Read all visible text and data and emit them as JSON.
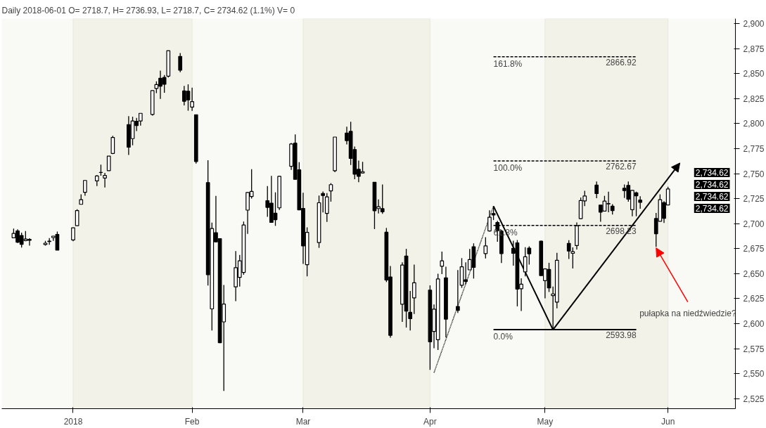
{
  "chart_data": {
    "type": "candlestick",
    "title": "Daily 2018-06-01 O= 2718.7, H= 2736.93, L= 2718.7, C= 2734.62 (1.1%) V= 0",
    "color": "#000000",
    "x": [
      "2017-12-18",
      "2017-12-19",
      "2017-12-20",
      "2017-12-21",
      "2017-12-22",
      "2017-12-26",
      "2017-12-27",
      "2017-12-28",
      "2017-12-29",
      "2018-01-02",
      "2018-01-03",
      "2018-01-04",
      "2018-01-05",
      "2018-01-08",
      "2018-01-09",
      "2018-01-10",
      "2018-01-11",
      "2018-01-12",
      "2018-01-16",
      "2018-01-17",
      "2018-01-18",
      "2018-01-19",
      "2018-01-22",
      "2018-01-23",
      "2018-01-24",
      "2018-01-25",
      "2018-01-26",
      "2018-01-29",
      "2018-01-30",
      "2018-01-31",
      "2018-02-01",
      "2018-02-02",
      "2018-02-05",
      "2018-02-06",
      "2018-02-07",
      "2018-02-08",
      "2018-02-09",
      "2018-02-12",
      "2018-02-13",
      "2018-02-14",
      "2018-02-15",
      "2018-02-16",
      "2018-02-20",
      "2018-02-21",
      "2018-02-22",
      "2018-02-23",
      "2018-02-26",
      "2018-02-27",
      "2018-02-28",
      "2018-03-01",
      "2018-03-02",
      "2018-03-05",
      "2018-03-06",
      "2018-03-07",
      "2018-03-08",
      "2018-03-09",
      "2018-03-12",
      "2018-03-13",
      "2018-03-14",
      "2018-03-15",
      "2018-03-16",
      "2018-03-19",
      "2018-03-20",
      "2018-03-21",
      "2018-03-22",
      "2018-03-23",
      "2018-03-26",
      "2018-03-27",
      "2018-03-28",
      "2018-03-29",
      "2018-04-02",
      "2018-04-03",
      "2018-04-04",
      "2018-04-05",
      "2018-04-06",
      "2018-04-09",
      "2018-04-10",
      "2018-04-11",
      "2018-04-12",
      "2018-04-13",
      "2018-04-16",
      "2018-04-17",
      "2018-04-18",
      "2018-04-19",
      "2018-04-20",
      "2018-04-23",
      "2018-04-24",
      "2018-04-25",
      "2018-04-26",
      "2018-04-27",
      "2018-04-30",
      "2018-05-01",
      "2018-05-02",
      "2018-05-03",
      "2018-05-04",
      "2018-05-07",
      "2018-05-08",
      "2018-05-09",
      "2018-05-10",
      "2018-05-11",
      "2018-05-14",
      "2018-05-15",
      "2018-05-16",
      "2018-05-17",
      "2018-05-18",
      "2018-05-21",
      "2018-05-22",
      "2018-05-23",
      "2018-05-24",
      "2018-05-25",
      "2018-05-29",
      "2018-05-30",
      "2018-05-31",
      "2018-06-01"
    ],
    "ohlc": [
      [
        2685.9,
        2695.0,
        2685.9,
        2690.2
      ],
      [
        2692.7,
        2694.4,
        2680.7,
        2681.5
      ],
      [
        2688.2,
        2691.0,
        2676.1,
        2679.3
      ],
      [
        2683.0,
        2692.6,
        2682.4,
        2684.6
      ],
      [
        2684.2,
        2685.4,
        2678.1,
        2683.3
      ],
      [
        2679.1,
        2682.7,
        2678.0,
        2680.5
      ],
      [
        2682.1,
        2685.6,
        2678.9,
        2682.6
      ],
      [
        2686.1,
        2687.7,
        2682.7,
        2687.5
      ],
      [
        2689.2,
        2692.1,
        2673.6,
        2673.6
      ],
      [
        2683.7,
        2695.9,
        2682.4,
        2695.8
      ],
      [
        2697.9,
        2714.4,
        2697.8,
        2713.1
      ],
      [
        2719.3,
        2729.3,
        2719.1,
        2724.0
      ],
      [
        2731.3,
        2743.5,
        2727.9,
        2743.2
      ],
      [
        2742.7,
        2748.5,
        2737.6,
        2747.7
      ],
      [
        2751.2,
        2759.1,
        2747.9,
        2751.3
      ],
      [
        2745.6,
        2750.8,
        2736.1,
        2748.2
      ],
      [
        2753.0,
        2767.6,
        2752.8,
        2767.6
      ],
      [
        2770.2,
        2787.9,
        2769.6,
        2786.2
      ],
      [
        2799.0,
        2807.5,
        2768.6,
        2776.4
      ],
      [
        2785.0,
        2807.0,
        2778.4,
        2802.6
      ],
      [
        2802.4,
        2805.8,
        2792.6,
        2798.0
      ],
      [
        2802.6,
        2810.3,
        2798.1,
        2810.3
      ],
      [
        2809.2,
        2833.0,
        2808.1,
        2833.0
      ],
      [
        2835.1,
        2842.2,
        2830.6,
        2839.1
      ],
      [
        2845.4,
        2853.0,
        2824.8,
        2837.5
      ],
      [
        2846.2,
        2848.6,
        2830.9,
        2839.3
      ],
      [
        2847.5,
        2872.9,
        2846.2,
        2872.9
      ],
      [
        2867.2,
        2870.6,
        2851.5,
        2853.5
      ],
      [
        2832.7,
        2837.8,
        2818.3,
        2822.4
      ],
      [
        2832.4,
        2839.3,
        2813.0,
        2823.8
      ],
      [
        2816.5,
        2836.0,
        2812.7,
        2822.0
      ],
      [
        2808.9,
        2808.9,
        2760.0,
        2762.1
      ],
      [
        2741.1,
        2763.4,
        2638.2,
        2648.9
      ],
      [
        2614.8,
        2701.0,
        2593.1,
        2695.1
      ],
      [
        2691.0,
        2727.7,
        2681.3,
        2681.7
      ],
      [
        2685.0,
        2685.3,
        2580.6,
        2581.0
      ],
      [
        2601.8,
        2638.7,
        2532.7,
        2619.6
      ],
      [
        2636.8,
        2672.6,
        2622.5,
        2656.0
      ],
      [
        2646.3,
        2668.8,
        2637.1,
        2662.9
      ],
      [
        2651.2,
        2702.1,
        2648.9,
        2698.6
      ],
      [
        2713.5,
        2731.5,
        2689.8,
        2731.2
      ],
      [
        2727.1,
        2754.4,
        2725.1,
        2732.2
      ],
      [
        2723.0,
        2737.6,
        2706.8,
        2716.3
      ],
      [
        2720.5,
        2747.8,
        2701.3,
        2701.3
      ],
      [
        2710.4,
        2731.3,
        2697.8,
        2704.0
      ],
      [
        2715.8,
        2747.8,
        2713.7,
        2747.3
      ],
      [
        2757.4,
        2780.6,
        2753.8,
        2779.6
      ],
      [
        2780.5,
        2789.2,
        2744.2,
        2744.3
      ],
      [
        2753.8,
        2761.5,
        2713.5,
        2713.8
      ],
      [
        2715.2,
        2730.9,
        2659.7,
        2677.7
      ],
      [
        2658.9,
        2696.3,
        2647.3,
        2691.3
      ],
      [
        2681.1,
        2728.1,
        2675.8,
        2720.9
      ],
      [
        2730.2,
        2732.1,
        2711.3,
        2728.1
      ],
      [
        2710.2,
        2730.6,
        2701.7,
        2726.8
      ],
      [
        2732.8,
        2740.5,
        2722.0,
        2739.0
      ],
      [
        2752.9,
        2786.6,
        2751.5,
        2786.6
      ],
      [
        2790.5,
        2797.0,
        2779.3,
        2783.0
      ],
      [
        2792.3,
        2801.9,
        2758.7,
        2765.3
      ],
      [
        2774.1,
        2777.1,
        2744.4,
        2749.5
      ],
      [
        2754.3,
        2763.0,
        2741.5,
        2747.3
      ],
      [
        2750.6,
        2761.9,
        2750.0,
        2752.0
      ],
      [
        2741.4,
        2741.4,
        2694.6,
        2712.9
      ],
      [
        2715.1,
        2724.2,
        2710.1,
        2716.9
      ],
      [
        2715.0,
        2739.1,
        2709.8,
        2711.9
      ],
      [
        2691.4,
        2695.7,
        2641.6,
        2643.7
      ],
      [
        2646.7,
        2657.7,
        2585.9,
        2588.3
      ],
      [
        2619.4,
        2661.4,
        2601.8,
        2658.6
      ],
      [
        2667.6,
        2674.8,
        2596.1,
        2612.6
      ],
      [
        2611.3,
        2632.7,
        2593.1,
        2605.0
      ],
      [
        2625.7,
        2659.1,
        2609.7,
        2640.9
      ],
      [
        2633.5,
        2638.3,
        2553.8,
        2581.9
      ],
      [
        2592.2,
        2619.1,
        2575.5,
        2614.5
      ],
      [
        2584.0,
        2649.9,
        2573.6,
        2644.7
      ],
      [
        2657.4,
        2672.1,
        2649.6,
        2662.8
      ],
      [
        2645.8,
        2656.9,
        2586.3,
        2604.5
      ],
      [
        2617.2,
        2653.6,
        2610.8,
        2613.2
      ],
      [
        2638.4,
        2665.5,
        2635.8,
        2656.9
      ],
      [
        2643.9,
        2661.4,
        2639.3,
        2642.2
      ],
      [
        2653.8,
        2674.7,
        2653.8,
        2664.0
      ],
      [
        2676.9,
        2680.3,
        2645.1,
        2656.3
      ],
      [
        2670.1,
        2686.5,
        2665.2,
        2677.8
      ],
      [
        2692.7,
        2713.3,
        2692.1,
        2706.4
      ],
      [
        2710.1,
        2717.5,
        2703.6,
        2708.6
      ],
      [
        2701.2,
        2702.8,
        2681.9,
        2693.1
      ],
      [
        2692.6,
        2693.9,
        2660.6,
        2670.1
      ],
      [
        2675.4,
        2682.9,
        2658.0,
        2670.3
      ],
      [
        2680.8,
        2683.6,
        2617.3,
        2634.6
      ],
      [
        2634.9,
        2645.3,
        2612.7,
        2639.4
      ],
      [
        2651.7,
        2676.5,
        2647.2,
        2666.9
      ],
      [
        2675.5,
        2677.4,
        2659.0,
        2669.9
      ],
      [
        2682.5,
        2682.9,
        2648.0,
        2648.1
      ],
      [
        2643.0,
        2655.3,
        2625.4,
        2654.8
      ],
      [
        2654.2,
        2660.9,
        2631.7,
        2635.7
      ],
      [
        2628.1,
        2637.1,
        2594.6,
        2629.7
      ],
      [
        2621.5,
        2670.9,
        2615.3,
        2663.4
      ],
      [
        2680.3,
        2683.4,
        2664.7,
        2672.6
      ],
      [
        2670.3,
        2676.3,
        2655.2,
        2671.9
      ],
      [
        2678.1,
        2701.3,
        2674.1,
        2697.8
      ],
      [
        2705.0,
        2726.1,
        2704.5,
        2723.1
      ],
      [
        2722.7,
        2732.9,
        2717.5,
        2727.7
      ],
      [
        2738.5,
        2742.1,
        2725.5,
        2730.1
      ],
      [
        2718.6,
        2718.6,
        2701.9,
        2711.5
      ],
      [
        2712.6,
        2727.8,
        2712.2,
        2722.5
      ],
      [
        2719.7,
        2732.0,
        2711.4,
        2720.1
      ],
      [
        2717.4,
        2719.5,
        2709.2,
        2713.0
      ],
      [
        2735.4,
        2739.2,
        2725.7,
        2733.0
      ],
      [
        2738.3,
        2742.2,
        2721.9,
        2724.4
      ],
      [
        2714.0,
        2733.3,
        2707.4,
        2733.3
      ],
      [
        2730.9,
        2732.0,
        2707.4,
        2727.8
      ],
      [
        2723.6,
        2727.4,
        2715.0,
        2721.3
      ],
      [
        2705.1,
        2710.7,
        2676.8,
        2689.9
      ],
      [
        2702.4,
        2729.3,
        2702.4,
        2724.0
      ],
      [
        2721.0,
        2722.5,
        2700.7,
        2705.3
      ],
      [
        2718.7,
        2736.93,
        2718.7,
        2734.62
      ]
    ],
    "series": [
      {
        "type": "line",
        "x": [
          "2018-04-03",
          "2018-04-18"
        ],
        "values": [
          2551,
          2717.5
        ],
        "color": "#000000",
        "line_style": "dotted"
      },
      {
        "type": "line",
        "x": [
          "2018-04-18",
          "2018-05-03"
        ],
        "values": [
          2717.5,
          2594
        ],
        "color": "#000000",
        "line_style": "solid"
      },
      {
        "type": "line",
        "x": [
          "2018-04-18",
          "2018-05-24"
        ],
        "values": [
          2866.92,
          2866.92
        ],
        "color": "#000000",
        "line_style": "dashed"
      },
      {
        "type": "line",
        "x": [
          "2018-04-18",
          "2018-05-24"
        ],
        "values": [
          2762.67,
          2762.67
        ],
        "color": "#000000",
        "line_style": "dashed"
      },
      {
        "type": "line",
        "x": [
          "2018-04-18",
          "2018-05-24"
        ],
        "values": [
          2698.23,
          2698.23
        ],
        "color": "#000000",
        "line_style": "dashed"
      },
      {
        "type": "line",
        "x": [
          "2018-04-18",
          "2018-05-24"
        ],
        "values": [
          2593.98,
          2593.98
        ],
        "color": "#000000",
        "line_style": "solid"
      }
    ],
    "annotations": [
      {
        "text": "161.8%",
        "x": "2018-04-18",
        "y": 2866.92
      },
      {
        "text": "2866.92",
        "x": "2018-05-24",
        "y": 2866.92
      },
      {
        "text": "100.0%",
        "x": "2018-04-18",
        "y": 2762.67
      },
      {
        "text": "2762.67",
        "x": "2018-05-24",
        "y": 2762.67
      },
      {
        "text": "61.8%",
        "x": "2018-04-18",
        "y": 2698.23
      },
      {
        "text": "2698.23",
        "x": "2018-05-24",
        "y": 2698.23
      },
      {
        "text": "0.0%",
        "x": "2018-04-18",
        "y": 2593.98
      },
      {
        "text": "2593.98",
        "x": "2018-05-24",
        "y": 2593.98
      },
      {
        "text": "pułapka na niedźwiedzie?",
        "x": "2018-05-29",
        "y": 2676.8
      },
      "2,734.62",
      "2,734.62",
      "2,734.62",
      "2,734.62"
    ],
    "bands": [
      {
        "axis": "x",
        "from": "2018-01-02",
        "to": "2018-02-01",
        "color": "#f3f2e8"
      },
      {
        "axis": "x",
        "from": "2018-03-01",
        "to": "2018-04-02",
        "color": "#f3f2e8"
      },
      {
        "axis": "x",
        "from": "2018-05-01",
        "to": "2018-06-01",
        "color": "#f3f2e8"
      }
    ],
    "xlim": [
      "2017-12-15",
      "2018-06-18"
    ],
    "xticks": [
      {
        "value": "2018-01-02",
        "label": "2018"
      },
      {
        "value": "2018-02-01",
        "label": "Feb"
      },
      {
        "value": "2018-03-01",
        "label": "Mar"
      },
      {
        "value": "2018-04-02",
        "label": "Apr"
      },
      {
        "value": "2018-05-01",
        "label": "May"
      },
      {
        "value": "2018-06-01",
        "label": "Jun"
      }
    ],
    "ylim": [
      2515,
      2905
    ],
    "yticks": [
      {
        "value": 2525,
        "label": "2,525"
      },
      {
        "value": 2550,
        "label": "2,550"
      },
      {
        "value": 2575,
        "label": "2,575"
      },
      {
        "value": 2600,
        "label": "2,600"
      },
      {
        "value": 2625,
        "label": "2,625"
      },
      {
        "value": 2650,
        "label": "2,650"
      },
      {
        "value": 2675,
        "label": "2,675"
      },
      {
        "value": 2700,
        "label": "2,700"
      },
      {
        "value": 2725,
        "label": "2,725"
      },
      {
        "value": 2750,
        "label": "2,750"
      },
      {
        "value": 2775,
        "label": "2,775"
      },
      {
        "value": 2800,
        "label": "2,800"
      },
      {
        "value": 2825,
        "label": "2,825"
      },
      {
        "value": 2850,
        "label": "2,850"
      },
      {
        "value": 2875,
        "label": "2,875"
      },
      {
        "value": 2900,
        "label": "2,900"
      }
    ],
    "grid": false
  }
}
